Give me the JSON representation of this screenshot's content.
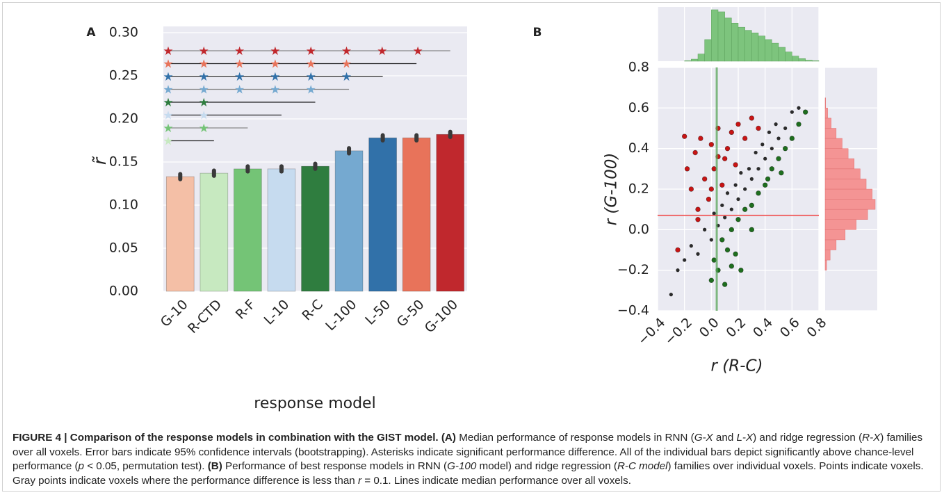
{
  "chart_data": [
    {
      "type": "bar",
      "panel_label": "A",
      "ylabel": "r̃",
      "xlabel": "response model",
      "categories": [
        "G-10",
        "R-CTD",
        "R-F",
        "L-10",
        "R-C",
        "L-100",
        "L-50",
        "G-50",
        "G-100"
      ],
      "values": [
        0.133,
        0.137,
        0.142,
        0.142,
        0.145,
        0.163,
        0.178,
        0.178,
        0.182
      ],
      "errors": [
        0.003,
        0.003,
        0.003,
        0.003,
        0.003,
        0.003,
        0.003,
        0.003,
        0.003
      ],
      "colors": [
        "#f4bfa6",
        "#c7e9c0",
        "#74c476",
        "#c6dbef",
        "#2f7d3f",
        "#75a9d0",
        "#3171a9",
        "#e8735a",
        "#c0282d"
      ],
      "ylim": [
        0,
        0.3
      ],
      "yticks": [
        {
          "value": 0,
          "label": "0.00"
        },
        0.05,
        {
          "value": 0.1,
          "label": "0.10"
        },
        0.15,
        {
          "value": 0.2,
          "label": "0.20"
        },
        0.25,
        {
          "value": 0.3,
          "label": "0.30"
        }
      ],
      "grid": true
    },
    {
      "type": "scatter",
      "panel_label": "B",
      "xlabel": "r (R-C)",
      "ylabel": "r (G-100)",
      "xlim": [
        -0.4,
        0.8
      ],
      "ylim": [
        -0.4,
        0.8
      ],
      "xticks": [
        {
          "value": -0.4,
          "label": "−0.4"
        },
        {
          "value": -0.2,
          "label": "−0.2"
        },
        {
          "value": 0,
          "label": "0.0"
        },
        0.2,
        0.4,
        0.6,
        0.8
      ],
      "yticks": [
        {
          "value": -0.4,
          "label": "−0.4"
        },
        {
          "value": -0.2,
          "label": "−0.2"
        },
        {
          "value": 0,
          "label": "0.0"
        },
        0.2,
        0.4,
        0.6,
        0.8
      ],
      "grid": true,
      "series": [
        {
          "color": "#2b2b2b",
          "x": [
            -0.3,
            -0.25,
            -0.2,
            -0.15,
            -0.1,
            -0.05,
            0,
            0.02,
            0.05,
            0.08,
            0.1,
            0.12,
            0.15,
            0.18,
            0.2,
            0.22,
            0.25,
            0.28,
            0.3,
            0.33,
            0.35,
            0.38,
            0.4,
            0.43,
            0.45,
            0.48,
            0.5,
            0.55,
            0.6,
            0.65
          ],
          "y": [
            -0.32,
            -0.2,
            -0.15,
            -0.08,
            -0.12,
            0,
            -0.05,
            0.08,
            0.02,
            0.12,
            0.06,
            0.18,
            0.1,
            0.22,
            0.15,
            0.28,
            0.2,
            0.3,
            0.25,
            0.38,
            0.3,
            0.42,
            0.35,
            0.48,
            0.4,
            0.52,
            0.45,
            0.5,
            0.58,
            0.6
          ]
        },
        {
          "color": "#c81414",
          "x": [
            -0.2,
            -0.18,
            -0.15,
            -0.12,
            -0.1,
            -0.08,
            -0.05,
            -0.02,
            0,
            0.02,
            0.05,
            0.08,
            0.1,
            0.12,
            0.15,
            0.18,
            0.2,
            0.25,
            0.3,
            0.35,
            -0.25,
            -0.1,
            0,
            0.05
          ],
          "y": [
            0.46,
            0.3,
            0.2,
            0.38,
            0.1,
            0.45,
            0.25,
            0.15,
            0.42,
            0.3,
            0.5,
            0.22,
            0.35,
            0.4,
            0.48,
            0.32,
            0.52,
            0.45,
            0.55,
            0.5,
            -0.1,
            0.05,
            0.2,
            0.36
          ]
        },
        {
          "color": "#1e6e1e",
          "x": [
            0,
            0.02,
            0.05,
            0.08,
            0.1,
            0.12,
            0.15,
            0.18,
            0.2,
            0.22,
            0.25,
            0.3,
            0.35,
            0.4,
            0.45,
            0.5,
            0.55,
            0.6,
            0.65,
            0.7,
            0.15,
            0.3,
            0.42,
            0.52
          ],
          "y": [
            -0.25,
            -0.15,
            -0.2,
            -0.05,
            -0.27,
            -0.1,
            0,
            -0.12,
            0.05,
            -0.2,
            0.1,
            0,
            0.18,
            0.22,
            0.3,
            0.35,
            0.4,
            0.45,
            0.52,
            0.58,
            -0.18,
            0.12,
            0.25,
            0.28
          ]
        }
      ],
      "median_x": 0.04,
      "median_x_color": "#5aa65a",
      "median_y": 0.07,
      "median_y_color": "#f05050",
      "x_hist": {
        "color": "#7dc47d",
        "bins": [
          -0.2,
          -0.15,
          -0.1,
          -0.05,
          0,
          0.05,
          0.1,
          0.15,
          0.2,
          0.25,
          0.3,
          0.35,
          0.4,
          0.45,
          0.5,
          0.55,
          0.6,
          0.65,
          0.7,
          0.75,
          0.8
        ],
        "counts": [
          1,
          4,
          14,
          42,
          100,
          96,
          84,
          74,
          66,
          60,
          55,
          49,
          42,
          35,
          27,
          18,
          10,
          5,
          2,
          1
        ]
      },
      "y_hist": {
        "color": "#f49494",
        "bins": [
          -0.2,
          -0.15,
          -0.1,
          -0.05,
          0,
          0.05,
          0.1,
          0.15,
          0.2,
          0.25,
          0.3,
          0.35,
          0.4,
          0.45,
          0.5,
          0.55,
          0.6,
          0.65
        ],
        "counts": [
          3,
          10,
          22,
          40,
          62,
          85,
          100,
          94,
          82,
          70,
          58,
          46,
          34,
          22,
          12,
          5,
          1
        ]
      }
    }
  ],
  "caption": [
    {
      "text": "FIGURE 4 | Comparison of the response models in combination with the GIST model. (A)",
      "style": "bold"
    },
    {
      "text": " Median performance of response models in RNN (",
      "style": "normal"
    },
    {
      "text": "G-X",
      "style": "italic"
    },
    {
      "text": " and ",
      "style": "normal"
    },
    {
      "text": "L-X",
      "style": "italic"
    },
    {
      "text": ") and ridge regression (",
      "style": "normal"
    },
    {
      "text": "R-X",
      "style": "italic"
    },
    {
      "text": ") families over all voxels. Error bars indicate 95% confidence intervals (bootstrapping). Asterisks indicate significant performance difference. All of the individual bars depict significantly above chance-level performance (",
      "style": "normal"
    },
    {
      "text": "p",
      "style": "italic"
    },
    {
      "text": " < 0.05, permutation test). ",
      "style": "normal"
    },
    {
      "text": "(B)",
      "style": "bold"
    },
    {
      "text": " Performance of best response models in RNN (",
      "style": "normal"
    },
    {
      "text": "G-100",
      "style": "italic"
    },
    {
      "text": " model) and ridge regression (",
      "style": "normal"
    },
    {
      "text": "R-C model",
      "style": "italic"
    },
    {
      "text": ") families over individual voxels. Points indicate voxels. Gray points indicate voxels where the performance difference is less than ",
      "style": "normal"
    },
    {
      "text": "r",
      "style": "italic"
    },
    {
      "text": " = 0.1. Lines indicate median performance over all voxels.",
      "style": "normal"
    }
  ]
}
